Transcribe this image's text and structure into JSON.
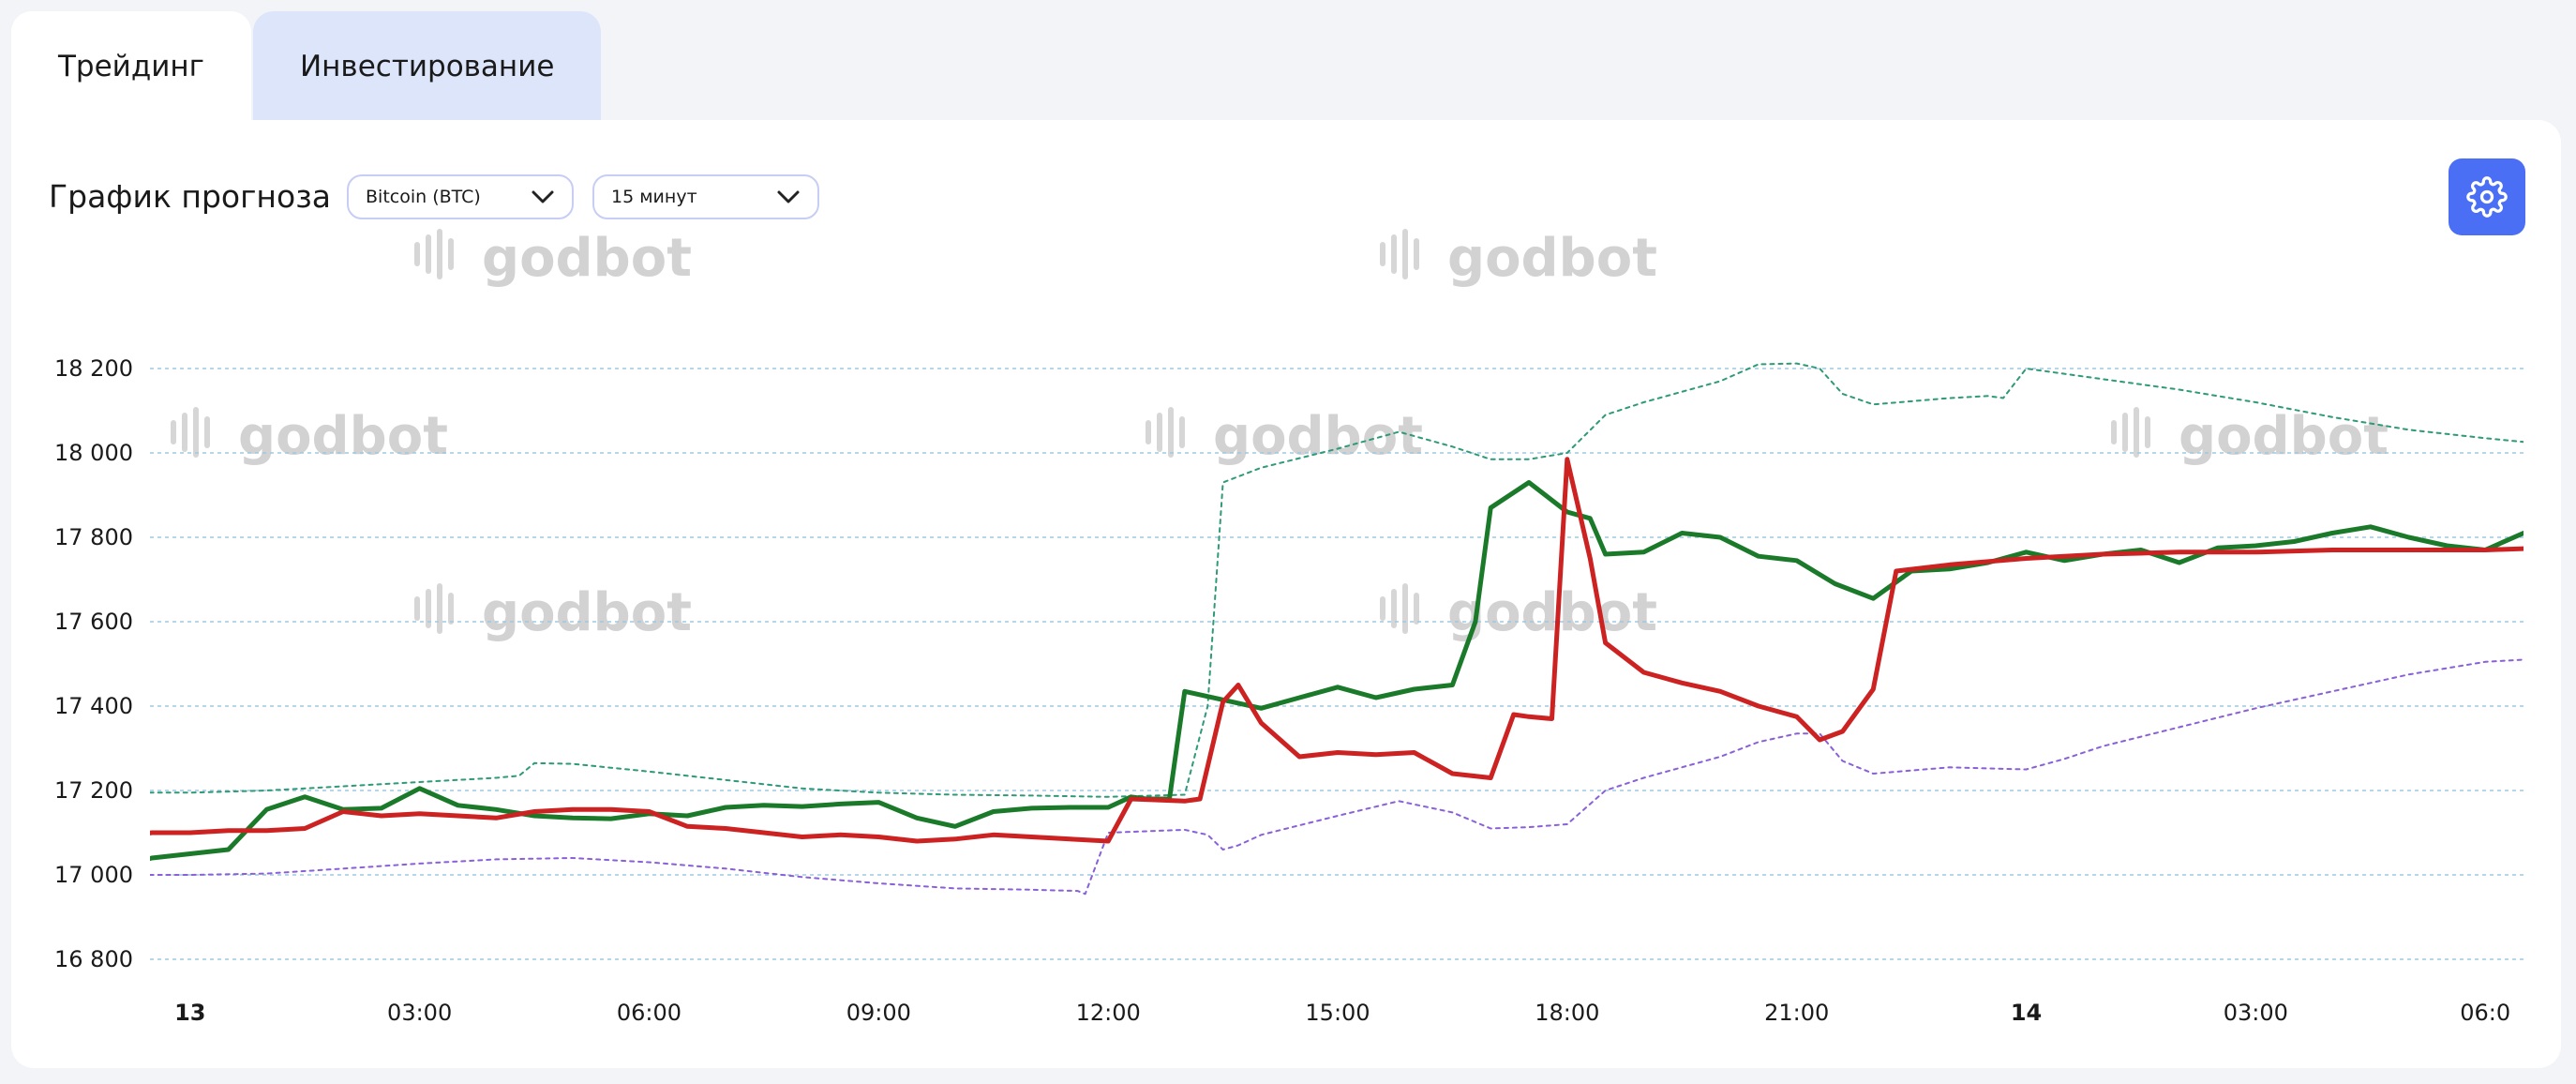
{
  "tabs": [
    {
      "label": "Трейдинг",
      "active": true
    },
    {
      "label": "Инвестирование",
      "active": false
    }
  ],
  "header": {
    "title": "График прогноза",
    "coin_select": {
      "value": "Bitcoin (BTC)"
    },
    "interval_select": {
      "value": "15 минут"
    },
    "settings_icon": "gear-icon",
    "accent_color": "#4a6ff5"
  },
  "watermark": "godbot",
  "chart_data": {
    "type": "line",
    "ylim": [
      16700,
      18300
    ],
    "yticks": [
      16800,
      17000,
      17200,
      17400,
      17600,
      17800,
      18000,
      18200
    ],
    "ytick_labels": [
      "16 800",
      "17 000",
      "17 200",
      "17 400",
      "17 600",
      "17 800",
      "18 000",
      "18 200"
    ],
    "x_range": [
      -0.5,
      30.5
    ],
    "xticks": [
      {
        "x": 0,
        "label": "13",
        "bold": true
      },
      {
        "x": 3,
        "label": "03:00",
        "bold": false
      },
      {
        "x": 6,
        "label": "06:00",
        "bold": false
      },
      {
        "x": 9,
        "label": "09:00",
        "bold": false
      },
      {
        "x": 12,
        "label": "12:00",
        "bold": false
      },
      {
        "x": 15,
        "label": "15:00",
        "bold": false
      },
      {
        "x": 18,
        "label": "18:00",
        "bold": false
      },
      {
        "x": 21,
        "label": "21:00",
        "bold": false
      },
      {
        "x": 24,
        "label": "14",
        "bold": true
      },
      {
        "x": 27,
        "label": "03:00",
        "bold": false
      },
      {
        "x": 30,
        "label": "06:0",
        "bold": false
      }
    ],
    "grid": true,
    "series": [
      {
        "key": "upper",
        "color": "#2e9a78",
        "dashed": true,
        "points": [
          [
            -1.3,
            17195
          ],
          [
            0,
            17195
          ],
          [
            1,
            17200
          ],
          [
            2,
            17210
          ],
          [
            3,
            17220
          ],
          [
            4,
            17230
          ],
          [
            4.3,
            17235
          ],
          [
            4.5,
            17265
          ],
          [
            5,
            17263
          ],
          [
            6,
            17245
          ],
          [
            7,
            17225
          ],
          [
            8,
            17205
          ],
          [
            9,
            17195
          ],
          [
            10,
            17190
          ],
          [
            11,
            17188
          ],
          [
            12,
            17185
          ],
          [
            13,
            17190
          ],
          [
            13.3,
            17400
          ],
          [
            13.5,
            17930
          ],
          [
            14,
            17965
          ],
          [
            15,
            18010
          ],
          [
            15.8,
            18050
          ],
          [
            16.5,
            18015
          ],
          [
            17,
            17985
          ],
          [
            17.5,
            17985
          ],
          [
            18,
            18000
          ],
          [
            18.5,
            18090
          ],
          [
            19,
            18120
          ],
          [
            20,
            18170
          ],
          [
            20.5,
            18210
          ],
          [
            21,
            18212
          ],
          [
            21.3,
            18200
          ],
          [
            21.6,
            18140
          ],
          [
            22,
            18115
          ],
          [
            23,
            18130
          ],
          [
            23.5,
            18135
          ],
          [
            23.7,
            18130
          ],
          [
            24,
            18200
          ],
          [
            25,
            18175
          ],
          [
            26,
            18150
          ],
          [
            27,
            18120
          ],
          [
            28,
            18085
          ],
          [
            29,
            18055
          ],
          [
            30,
            18035
          ],
          [
            30.5,
            18026
          ]
        ]
      },
      {
        "key": "lower",
        "color": "#8a60d8",
        "dashed": true,
        "points": [
          [
            -1.3,
            17000
          ],
          [
            0,
            17000
          ],
          [
            1,
            17003
          ],
          [
            2,
            17015
          ],
          [
            3,
            17027
          ],
          [
            4,
            17037
          ],
          [
            5,
            17040
          ],
          [
            6,
            17030
          ],
          [
            7,
            17015
          ],
          [
            8,
            16995
          ],
          [
            9,
            16980
          ],
          [
            10,
            16968
          ],
          [
            11,
            16965
          ],
          [
            11.6,
            16962
          ],
          [
            11.7,
            16955
          ],
          [
            12,
            17100
          ],
          [
            13,
            17107
          ],
          [
            13.3,
            17095
          ],
          [
            13.5,
            17060
          ],
          [
            13.7,
            17070
          ],
          [
            14,
            17095
          ],
          [
            15,
            17140
          ],
          [
            15.8,
            17175
          ],
          [
            16.5,
            17148
          ],
          [
            17,
            17110
          ],
          [
            17.5,
            17113
          ],
          [
            18,
            17120
          ],
          [
            18.5,
            17200
          ],
          [
            19,
            17230
          ],
          [
            20,
            17280
          ],
          [
            20.5,
            17315
          ],
          [
            21,
            17335
          ],
          [
            21.3,
            17335
          ],
          [
            21.6,
            17270
          ],
          [
            22,
            17240
          ],
          [
            23,
            17255
          ],
          [
            24,
            17250
          ],
          [
            24.5,
            17275
          ],
          [
            25,
            17305
          ],
          [
            26,
            17350
          ],
          [
            27,
            17395
          ],
          [
            28,
            17435
          ],
          [
            29,
            17475
          ],
          [
            30,
            17505
          ],
          [
            30.5,
            17510
          ]
        ]
      },
      {
        "key": "actual",
        "color": "#1a7a2a",
        "dashed": false,
        "points": [
          [
            -1.3,
            17020
          ],
          [
            -1,
            17015
          ],
          [
            -0.5,
            17040
          ],
          [
            0,
            17050
          ],
          [
            0.5,
            17060
          ],
          [
            1,
            17155
          ],
          [
            1.5,
            17185
          ],
          [
            2,
            17155
          ],
          [
            2.5,
            17158
          ],
          [
            3,
            17205
          ],
          [
            3.5,
            17165
          ],
          [
            4,
            17155
          ],
          [
            4.5,
            17140
          ],
          [
            5,
            17135
          ],
          [
            5.5,
            17133
          ],
          [
            6,
            17145
          ],
          [
            6.5,
            17140
          ],
          [
            7,
            17160
          ],
          [
            7.5,
            17165
          ],
          [
            8,
            17162
          ],
          [
            8.5,
            17168
          ],
          [
            9,
            17172
          ],
          [
            9.5,
            17135
          ],
          [
            10,
            17115
          ],
          [
            10.5,
            17150
          ],
          [
            11,
            17158
          ],
          [
            11.5,
            17160
          ],
          [
            12,
            17160
          ],
          [
            12.3,
            17185
          ],
          [
            12.5,
            17180
          ],
          [
            12.8,
            17180
          ],
          [
            13,
            17435
          ],
          [
            13.5,
            17415
          ],
          [
            14,
            17395
          ],
          [
            14.5,
            17420
          ],
          [
            15,
            17445
          ],
          [
            15.5,
            17420
          ],
          [
            16,
            17440
          ],
          [
            16.5,
            17450
          ],
          [
            16.8,
            17600
          ],
          [
            17,
            17870
          ],
          [
            17.5,
            17930
          ],
          [
            18,
            17860
          ],
          [
            18.3,
            17845
          ],
          [
            18.5,
            17760
          ],
          [
            19,
            17765
          ],
          [
            19.5,
            17810
          ],
          [
            20,
            17800
          ],
          [
            20.5,
            17755
          ],
          [
            21,
            17745
          ],
          [
            21.5,
            17690
          ],
          [
            22,
            17655
          ],
          [
            22.5,
            17720
          ],
          [
            23,
            17725
          ],
          [
            23.5,
            17740
          ],
          [
            24,
            17765
          ],
          [
            24.5,
            17745
          ],
          [
            25,
            17760
          ],
          [
            25.5,
            17770
          ],
          [
            26,
            17740
          ],
          [
            26.5,
            17775
          ],
          [
            27,
            17780
          ],
          [
            27.5,
            17790
          ],
          [
            28,
            17810
          ],
          [
            28.5,
            17825
          ],
          [
            29,
            17800
          ],
          [
            29.5,
            17780
          ],
          [
            30,
            17770
          ],
          [
            30.5,
            17810
          ]
        ]
      },
      {
        "key": "forecast",
        "color": "#cc2222",
        "dashed": false,
        "points": [
          [
            -1.3,
            17095
          ],
          [
            -1,
            17085
          ],
          [
            -0.5,
            17100
          ],
          [
            0,
            17100
          ],
          [
            0.5,
            17105
          ],
          [
            1,
            17105
          ],
          [
            1.5,
            17110
          ],
          [
            2,
            17150
          ],
          [
            2.5,
            17140
          ],
          [
            3,
            17145
          ],
          [
            3.5,
            17140
          ],
          [
            4,
            17135
          ],
          [
            4.5,
            17150
          ],
          [
            5,
            17155
          ],
          [
            5.5,
            17155
          ],
          [
            6,
            17150
          ],
          [
            6.5,
            17115
          ],
          [
            7,
            17110
          ],
          [
            7.5,
            17100
          ],
          [
            8,
            17090
          ],
          [
            8.5,
            17095
          ],
          [
            9,
            17090
          ],
          [
            9.5,
            17080
          ],
          [
            10,
            17085
          ],
          [
            10.5,
            17095
          ],
          [
            11,
            17090
          ],
          [
            11.5,
            17085
          ],
          [
            12,
            17080
          ],
          [
            12.3,
            17180
          ],
          [
            13,
            17175
          ],
          [
            13.2,
            17180
          ],
          [
            13.5,
            17410
          ],
          [
            13.7,
            17450
          ],
          [
            14,
            17360
          ],
          [
            14.5,
            17280
          ],
          [
            15,
            17290
          ],
          [
            15.5,
            17285
          ],
          [
            16,
            17290
          ],
          [
            16.5,
            17240
          ],
          [
            17,
            17230
          ],
          [
            17.3,
            17380
          ],
          [
            17.5,
            17375
          ],
          [
            17.8,
            17370
          ],
          [
            18,
            17985
          ],
          [
            18.3,
            17750
          ],
          [
            18.5,
            17550
          ],
          [
            19,
            17480
          ],
          [
            19.5,
            17455
          ],
          [
            20,
            17435
          ],
          [
            20.5,
            17400
          ],
          [
            21,
            17375
          ],
          [
            21.3,
            17320
          ],
          [
            21.6,
            17340
          ],
          [
            22,
            17440
          ],
          [
            22.3,
            17720
          ],
          [
            23,
            17735
          ],
          [
            24,
            17750
          ],
          [
            25,
            17760
          ],
          [
            26,
            17765
          ],
          [
            27,
            17765
          ],
          [
            28,
            17770
          ],
          [
            29,
            17770
          ],
          [
            30,
            17770
          ],
          [
            30.5,
            17773
          ]
        ]
      }
    ]
  }
}
